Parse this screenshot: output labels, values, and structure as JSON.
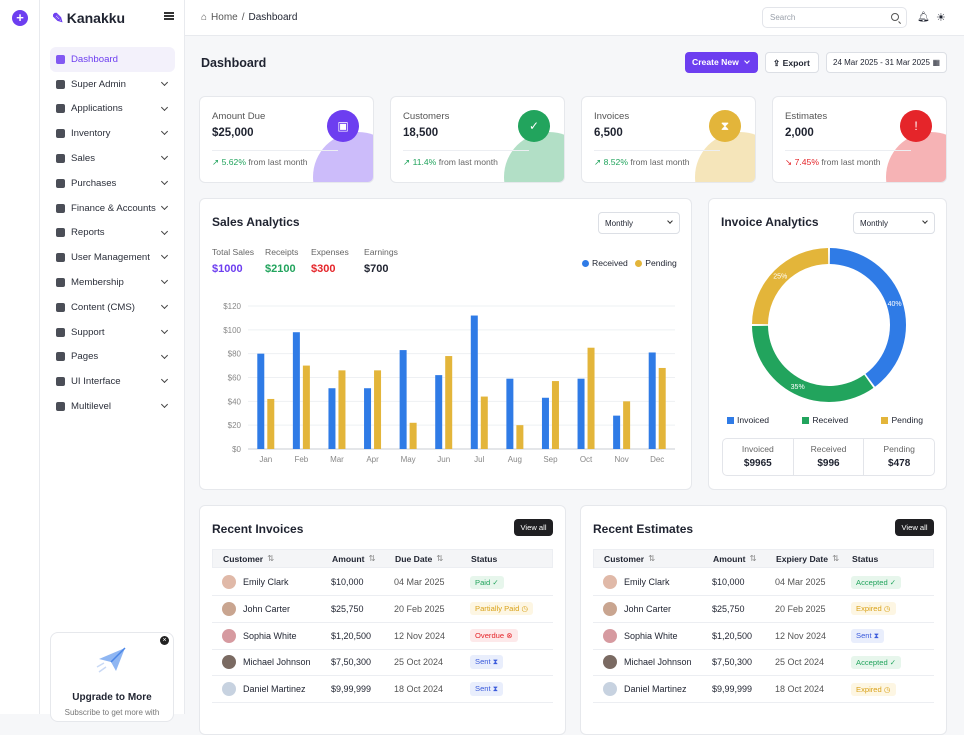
{
  "brand": {
    "name": "Kanakku"
  },
  "sidebar": {
    "items": [
      {
        "label": "Dashboard"
      },
      {
        "label": "Super Admin"
      },
      {
        "label": "Applications"
      },
      {
        "label": "Inventory"
      },
      {
        "label": "Sales"
      },
      {
        "label": "Purchases"
      },
      {
        "label": "Finance & Accounts"
      },
      {
        "label": "Reports"
      },
      {
        "label": "User Management"
      },
      {
        "label": "Membership"
      },
      {
        "label": "Content (CMS)"
      },
      {
        "label": "Support"
      },
      {
        "label": "Pages"
      },
      {
        "label": "UI Interface"
      },
      {
        "label": "Multilevel"
      }
    ],
    "upgrade": {
      "title": "Upgrade to More",
      "subtitle": "Subscribe to get more with"
    }
  },
  "topbar": {
    "breadcrumb_home": "Home",
    "breadcrumb_sep": "/",
    "breadcrumb_current": "Dashboard",
    "search_placeholder": "Search"
  },
  "header": {
    "title": "Dashboard",
    "create_label": "Create New",
    "export_label": "Export",
    "date_range": "24 Mar 2025 - 31 Mar 2025"
  },
  "stats": [
    {
      "label": "Amount Due",
      "value": "$25,000",
      "change": "5.62%",
      "suffix": "from last month",
      "trend": "up",
      "color": "#6d3ef0"
    },
    {
      "label": "Customers",
      "value": "18,500",
      "change": "11.4%",
      "suffix": "from last month",
      "trend": "up",
      "color": "#22a45d"
    },
    {
      "label": "Invoices",
      "value": "6,500",
      "change": "8.52%",
      "suffix": "from last month",
      "trend": "up",
      "color": "#e3b53a"
    },
    {
      "label": "Estimates",
      "value": "2,000",
      "change": "7.45%",
      "suffix": "from last month",
      "trend": "down",
      "color": "#e5252a"
    }
  ],
  "sales": {
    "title": "Sales Analytics",
    "period": "Monthly",
    "summary": [
      {
        "label": "Total Sales",
        "value": "$1000",
        "color": "#6d3ef0"
      },
      {
        "label": "Receipts",
        "value": "$2100",
        "color": "#22a45d"
      },
      {
        "label": "Expenses",
        "value": "$300",
        "color": "#e5252a"
      },
      {
        "label": "Earnings",
        "value": "$700",
        "color": "#1f2330"
      }
    ],
    "legend": [
      {
        "label": "Received",
        "color": "#2f7be6"
      },
      {
        "label": "Pending",
        "color": "#e3b53a"
      }
    ]
  },
  "invoice_analytics": {
    "title": "Invoice Analytics",
    "period": "Monthly",
    "legend": [
      {
        "label": "Invoiced",
        "color": "#2f7be6"
      },
      {
        "label": "Received",
        "color": "#22a45d"
      },
      {
        "label": "Pending",
        "color": "#e3b53a"
      }
    ],
    "totals": [
      {
        "label": "Invoiced",
        "value": "$9965"
      },
      {
        "label": "Received",
        "value": "$996"
      },
      {
        "label": "Pending",
        "value": "$478"
      }
    ]
  },
  "chart_data": [
    {
      "type": "bar",
      "categories": [
        "Jan",
        "Feb",
        "Mar",
        "Apr",
        "May",
        "Jun",
        "Jul",
        "Aug",
        "Sep",
        "Oct",
        "Nov",
        "Dec"
      ],
      "series": [
        {
          "name": "Received",
          "values": [
            80,
            98,
            51,
            51,
            83,
            62,
            112,
            59,
            43,
            59,
            28,
            81
          ],
          "color": "#2f7be6"
        },
        {
          "name": "Pending",
          "values": [
            42,
            70,
            66,
            66,
            22,
            78,
            44,
            20,
            57,
            85,
            40,
            68
          ],
          "color": "#e3b53a"
        }
      ],
      "yticks": [
        "$0",
        "$20",
        "$40",
        "$60",
        "$80",
        "$100",
        "$120"
      ],
      "ylim": [
        0,
        120
      ]
    },
    {
      "type": "pie",
      "labels": [
        "Invoiced",
        "Received",
        "Pending"
      ],
      "values": [
        40,
        35,
        25
      ],
      "data_labels": [
        "40%",
        "35%",
        "25%"
      ],
      "colors": [
        "#2f7be6",
        "#22a45d",
        "#e3b53a"
      ]
    }
  ],
  "recent_invoices": {
    "title": "Recent Invoices",
    "view_all": "View all",
    "columns": [
      "Customer",
      "Amount",
      "Due Date",
      "Status"
    ],
    "rows": [
      {
        "customer": "Emily Clark",
        "amount": "$10,000",
        "date": "04 Mar 2025",
        "status": "Paid"
      },
      {
        "customer": "John Carter",
        "amount": "$25,750",
        "date": "20 Feb 2025",
        "status": "Partially Paid"
      },
      {
        "customer": "Sophia White",
        "amount": "$1,20,500",
        "date": "12 Nov 2024",
        "status": "Overdue"
      },
      {
        "customer": "Michael Johnson",
        "amount": "$7,50,300",
        "date": "25 Oct 2024",
        "status": "Sent"
      },
      {
        "customer": "Daniel Martinez",
        "amount": "$9,99,999",
        "date": "18 Oct 2024",
        "status": "Sent"
      }
    ]
  },
  "recent_estimates": {
    "title": "Recent Estimates",
    "view_all": "View all",
    "columns": [
      "Customer",
      "Amount",
      "Expiery Date",
      "Status"
    ],
    "rows": [
      {
        "customer": "Emily Clark",
        "amount": "$10,000",
        "date": "04 Mar 2025",
        "status": "Accepted"
      },
      {
        "customer": "John Carter",
        "amount": "$25,750",
        "date": "20 Feb 2025",
        "status": "Expired"
      },
      {
        "customer": "Sophia White",
        "amount": "$1,20,500",
        "date": "12 Nov 2024",
        "status": "Sent"
      },
      {
        "customer": "Michael Johnson",
        "amount": "$7,50,300",
        "date": "25 Oct 2024",
        "status": "Accepted"
      },
      {
        "customer": "Daniel Martinez",
        "amount": "$9,99,999",
        "date": "18 Oct 2024",
        "status": "Expired"
      }
    ]
  }
}
